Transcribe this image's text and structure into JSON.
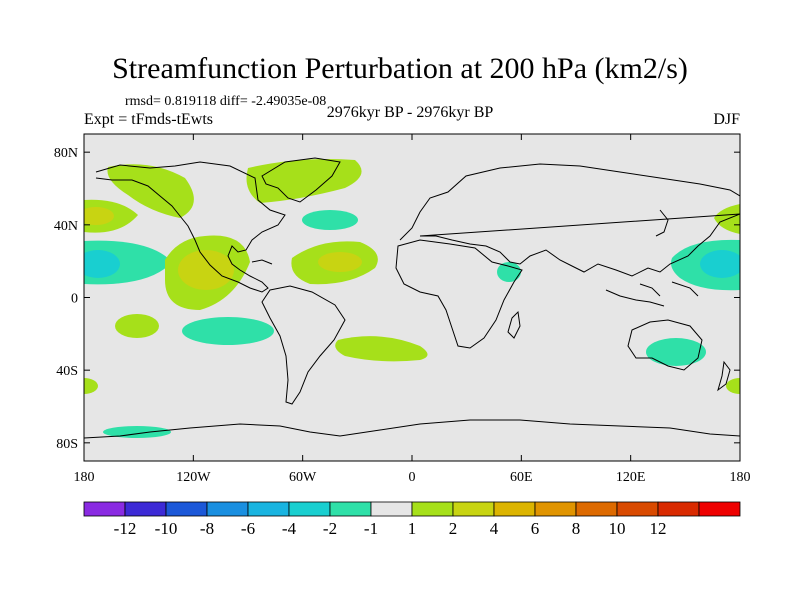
{
  "title": "Streamfunction Perturbation at 200 hPa (km2/s)",
  "stats_text": "rmsd= 0.819118 diff= -2.49035e-08",
  "experiment": "Expt = tFmds-tEwts",
  "period": "2976kyr BP - 2976kyr BP",
  "season": "DJF",
  "axes": {
    "y_ticks": [
      {
        "lat": 80,
        "label": "80N"
      },
      {
        "lat": 40,
        "label": "40N"
      },
      {
        "lat": 0,
        "label": "0"
      },
      {
        "lat": -40,
        "label": "40S"
      },
      {
        "lat": -80,
        "label": "80S"
      }
    ],
    "x_ticks": [
      {
        "lon": -180,
        "label": "180"
      },
      {
        "lon": -120,
        "label": "120W"
      },
      {
        "lon": -60,
        "label": "60W"
      },
      {
        "lon": 0,
        "label": "0"
      },
      {
        "lon": 60,
        "label": "60E"
      },
      {
        "lon": 120,
        "label": "120E"
      },
      {
        "lon": 180,
        "label": "180"
      }
    ],
    "lon_range": [
      -180,
      180
    ],
    "lat_range": [
      -90,
      90
    ]
  },
  "colorbar": {
    "colors": [
      "#8a2be2",
      "#3d2ad6",
      "#1c58d8",
      "#1a8fe0",
      "#19b4e0",
      "#19cfd0",
      "#2fe0a8",
      "#e6e6e6",
      "#a6e01a",
      "#c8d412",
      "#dcb400",
      "#e09400",
      "#dd6a00",
      "#d94a00",
      "#d92a00",
      "#ee0000"
    ],
    "labels": [
      "-12",
      "-10",
      "-8",
      "-6",
      "-4",
      "-2",
      "-1",
      "1",
      "2",
      "4",
      "6",
      "8",
      "10",
      "12"
    ]
  },
  "colors": {
    "background": "#e6e6e6",
    "light_green": "#a6e01a",
    "olive": "#c8d412",
    "cyan_green": "#2fe0a8",
    "cyan": "#19cfd0",
    "coast": "#000000"
  }
}
